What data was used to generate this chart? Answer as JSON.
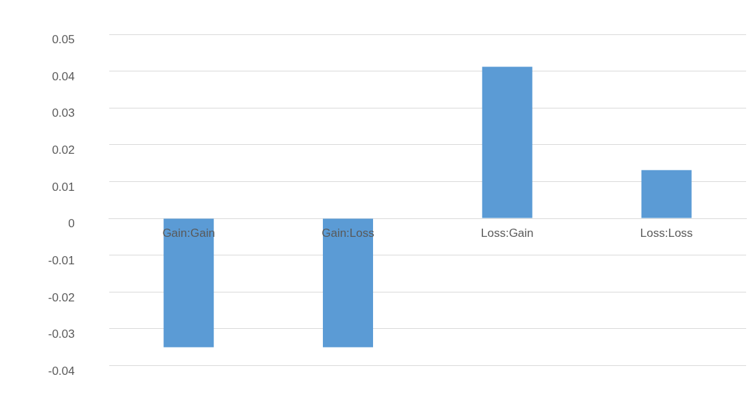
{
  "chart_data": {
    "type": "bar",
    "categories": [
      "Gain:Gain",
      "Gain:Loss",
      "Loss:Gain",
      "Loss:Loss"
    ],
    "values": [
      -0.035,
      -0.035,
      0.0412,
      0.0131
    ],
    "color": "#5b9bd5",
    "ylim": [
      -0.04,
      0.05
    ],
    "yticks": [
      -0.04,
      -0.03,
      -0.02,
      -0.01,
      0,
      0.01,
      0.02,
      0.03,
      0.04,
      0.05
    ],
    "grid": "y"
  }
}
